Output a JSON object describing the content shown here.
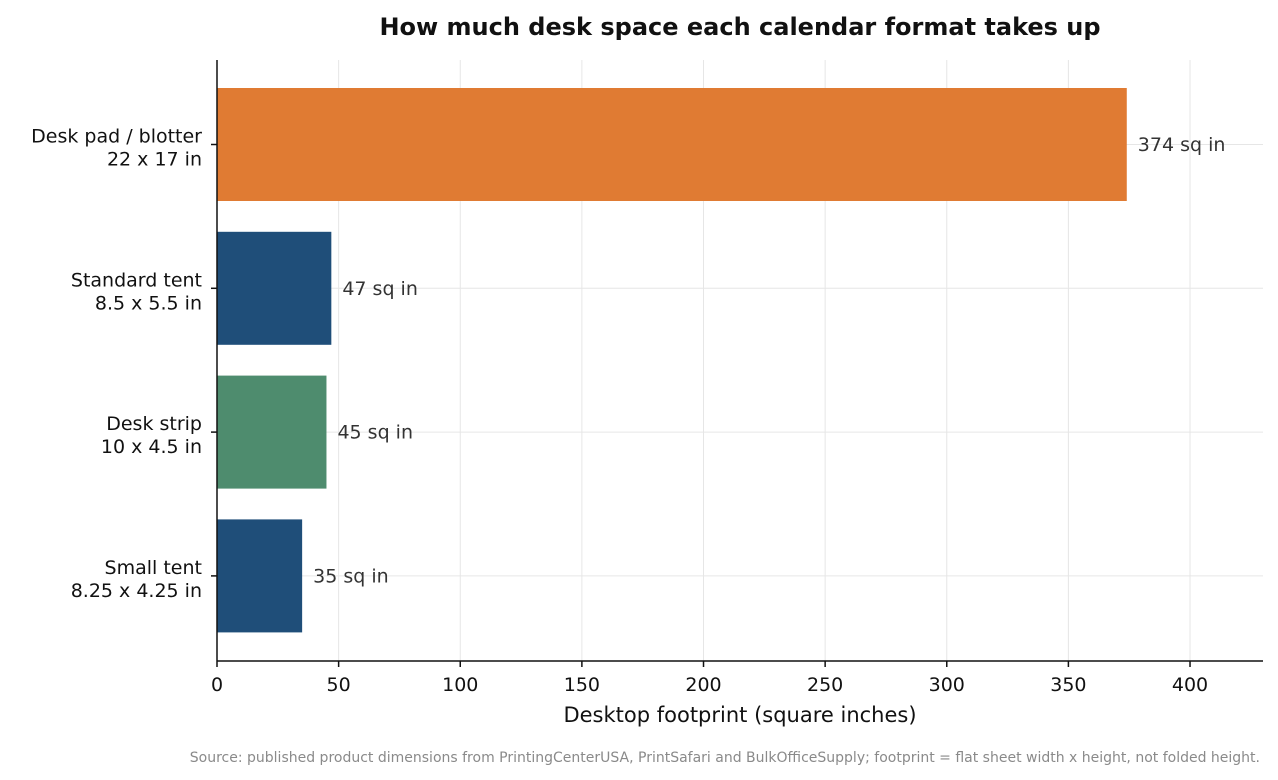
{
  "chart_data": {
    "type": "bar",
    "orientation": "horizontal",
    "title": "How much desk space each calendar format takes up",
    "xlabel": "Desktop footprint (square inches)",
    "ylabel": "",
    "xlim": [
      0,
      430
    ],
    "xticks": [
      0,
      50,
      100,
      150,
      200,
      250,
      300,
      350,
      400
    ],
    "grid": true,
    "categories": [
      {
        "name": "Desk pad / blotter",
        "size": "22 x 17 in"
      },
      {
        "name": "Standard tent",
        "size": "8.5 x 5.5 in"
      },
      {
        "name": "Desk strip",
        "size": "10 x 4.5 in"
      },
      {
        "name": "Small tent",
        "size": "8.25 x 4.25 in"
      }
    ],
    "values": [
      374,
      47,
      45,
      35
    ],
    "value_labels": [
      "374 sq in",
      "47 sq in",
      "45 sq in",
      "35 sq in"
    ],
    "colors": [
      "#e07b33",
      "#1f4e79",
      "#4e8c6e",
      "#1f4e79"
    ],
    "source": "Source: published product dimensions from PrintingCenterUSA, PrintSafari and BulkOfficeSupply; footprint = flat sheet width x height, not folded height."
  }
}
